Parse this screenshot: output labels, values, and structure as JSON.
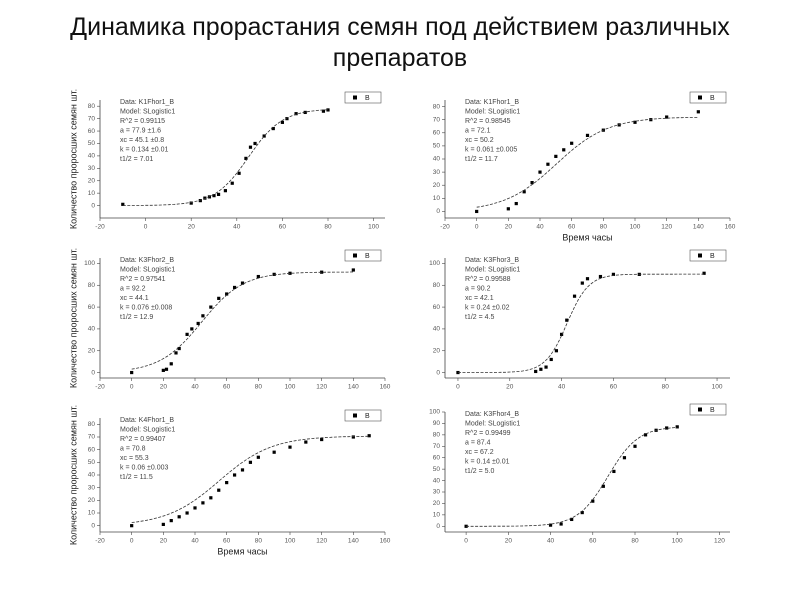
{
  "title": "Динамика прорастания семян под действием различных препаратов",
  "chart_data": [
    {
      "type": "scatter",
      "ylabel": "Количество проросших семян шт.",
      "series": [
        {
          "name": "B",
          "color": "#000000",
          "x": [
            -10,
            20,
            24,
            26,
            28,
            30,
            32,
            35,
            38,
            41,
            44,
            46,
            48,
            52,
            56,
            60,
            62,
            66,
            70,
            78,
            80
          ],
          "values": [
            1,
            2,
            4,
            6,
            7,
            8,
            9,
            12,
            18,
            26,
            38,
            47,
            50,
            56,
            62,
            67,
            70,
            74,
            75,
            76,
            77
          ]
        }
      ],
      "fit": {
        "a": 77.9,
        "xc": 45.1,
        "k": 0.134
      },
      "annotations": [
        "Data: K1Fhor1_B",
        "Model: SLogistic1",
        "R^2 = 0.99115",
        "a = 77.9 ±1.6",
        "xc = 45.1 ±0.8",
        "k = 0.134 ±0.01",
        "t1/2 = 7.01"
      ],
      "xlim": [
        -20,
        105
      ],
      "xticks": [
        -20,
        0,
        20,
        40,
        60,
        80,
        100
      ],
      "ylim": [
        -10,
        85
      ],
      "yticks": [
        0,
        10,
        20,
        30,
        40,
        50,
        60,
        70,
        80
      ]
    },
    {
      "type": "scatter",
      "xlabel": "Время часы",
      "series": [
        {
          "name": "B",
          "color": "#000000",
          "x": [
            0,
            20,
            25,
            30,
            35,
            40,
            45,
            50,
            55,
            60,
            70,
            80,
            90,
            100,
            110,
            120,
            140
          ],
          "values": [
            0,
            2,
            6,
            15,
            22,
            30,
            36,
            42,
            47,
            52,
            58,
            62,
            66,
            68,
            70,
            72,
            76
          ]
        }
      ],
      "fit": {
        "a": 72.1,
        "xc": 50.2,
        "k": 0.061
      },
      "annotations": [
        "Data: K1Fhor1_B",
        "Model: SLogistic1",
        "R^2 = 0.98545",
        "a = 72.1",
        "xc = 50.2",
        "k = 0.061 ±0.005",
        "t1/2 = 11.7"
      ],
      "xlim": [
        -20,
        160
      ],
      "xticks": [
        -20,
        0,
        20,
        40,
        60,
        80,
        100,
        120,
        140,
        160
      ],
      "ylim": [
        -5,
        85
      ],
      "yticks": [
        0,
        10,
        20,
        30,
        40,
        50,
        60,
        70,
        80
      ]
    },
    {
      "type": "scatter",
      "ylabel": "Количество проросших семян шт.",
      "series": [
        {
          "name": "B",
          "color": "#000000",
          "x": [
            0,
            20,
            22,
            25,
            28,
            30,
            35,
            38,
            42,
            45,
            50,
            55,
            60,
            65,
            70,
            80,
            90,
            100,
            120,
            140
          ],
          "values": [
            0,
            2,
            3,
            8,
            18,
            22,
            35,
            40,
            45,
            52,
            60,
            68,
            72,
            78,
            82,
            88,
            90,
            91,
            92,
            94
          ]
        }
      ],
      "fit": {
        "a": 92.2,
        "xc": 44.1,
        "k": 0.076
      },
      "annotations": [
        "Data: K3Fhor2_B",
        "Model: SLogistic1",
        "R^2 = 0.97541",
        "a = 92.2",
        "xc = 44.1",
        "k = 0.076 ±0.008",
        "t1/2 = 12.9"
      ],
      "xlim": [
        -20,
        160
      ],
      "xticks": [
        -20,
        0,
        20,
        40,
        60,
        80,
        100,
        120,
        140,
        160
      ],
      "ylim": [
        -5,
        105
      ],
      "yticks": [
        0,
        20,
        40,
        60,
        80,
        100
      ]
    },
    {
      "type": "scatter",
      "series": [
        {
          "name": "B",
          "color": "#000000",
          "x": [
            0,
            30,
            32,
            34,
            36,
            38,
            40,
            42,
            45,
            48,
            50,
            55,
            60,
            70,
            95
          ],
          "values": [
            0,
            1,
            3,
            5,
            12,
            20,
            35,
            48,
            70,
            82,
            86,
            88,
            90,
            90,
            91
          ]
        }
      ],
      "fit": {
        "a": 90.2,
        "xc": 42.1,
        "k": 0.24
      },
      "annotations": [
        "Data: K3Fhor3_B",
        "Model: SLogistic1",
        "R^2 = 0.99588",
        "a = 90.2",
        "xc = 42.1",
        "k = 0.24 ±0.02",
        "t1/2 = 4.5"
      ],
      "xlim": [
        -5,
        105
      ],
      "xticks": [
        0,
        20,
        40,
        60,
        80,
        100
      ],
      "ylim": [
        -5,
        105
      ],
      "yticks": [
        0,
        20,
        40,
        60,
        80,
        100
      ]
    },
    {
      "type": "scatter",
      "xlabel": "Время часы",
      "ylabel": "Количество проросших семян шт.",
      "series": [
        {
          "name": "B",
          "color": "#000000",
          "x": [
            0,
            20,
            25,
            30,
            35,
            40,
            45,
            50,
            55,
            60,
            65,
            70,
            75,
            80,
            90,
            100,
            110,
            120,
            140,
            150
          ],
          "values": [
            0,
            1,
            4,
            7,
            10,
            14,
            18,
            22,
            28,
            34,
            40,
            44,
            50,
            54,
            58,
            62,
            66,
            68,
            70,
            71
          ]
        }
      ],
      "fit": {
        "a": 70.8,
        "xc": 55.3,
        "k": 0.06
      },
      "annotations": [
        "Data: K4Fhor1_B",
        "Model: SLogistic1",
        "R^2 = 0.99407",
        "a = 70.8",
        "xc = 55.3",
        "k = 0.06 ±0.003",
        "t1/2 = 11.5"
      ],
      "xlim": [
        -20,
        160
      ],
      "xticks": [
        -20,
        0,
        20,
        40,
        60,
        80,
        100,
        120,
        140,
        160
      ],
      "ylim": [
        -5,
        85
      ],
      "yticks": [
        0,
        10,
        20,
        30,
        40,
        50,
        60,
        70,
        80
      ]
    },
    {
      "type": "scatter",
      "series": [
        {
          "name": "B",
          "color": "#000000",
          "x": [
            0,
            40,
            45,
            50,
            55,
            60,
            65,
            70,
            75,
            80,
            85,
            90,
            95,
            100
          ],
          "values": [
            0,
            1,
            2,
            6,
            12,
            22,
            35,
            48,
            60,
            70,
            80,
            84,
            86,
            87
          ]
        }
      ],
      "fit": {
        "a": 87.4,
        "xc": 67.2,
        "k": 0.14
      },
      "annotations": [
        "Data: K3Fhor4_B",
        "Model: SLogistic1",
        "R^2 = 0.99499",
        "a = 87.4",
        "xc = 67.2",
        "k = 0.14 ±0.01",
        "t1/2 = 5.0"
      ],
      "xlim": [
        -10,
        125
      ],
      "xticks": [
        0,
        20,
        40,
        60,
        80,
        100,
        120
      ],
      "ylim": [
        -5,
        100
      ],
      "yticks": [
        0,
        10,
        20,
        30,
        40,
        50,
        60,
        70,
        80,
        90,
        100
      ]
    }
  ]
}
